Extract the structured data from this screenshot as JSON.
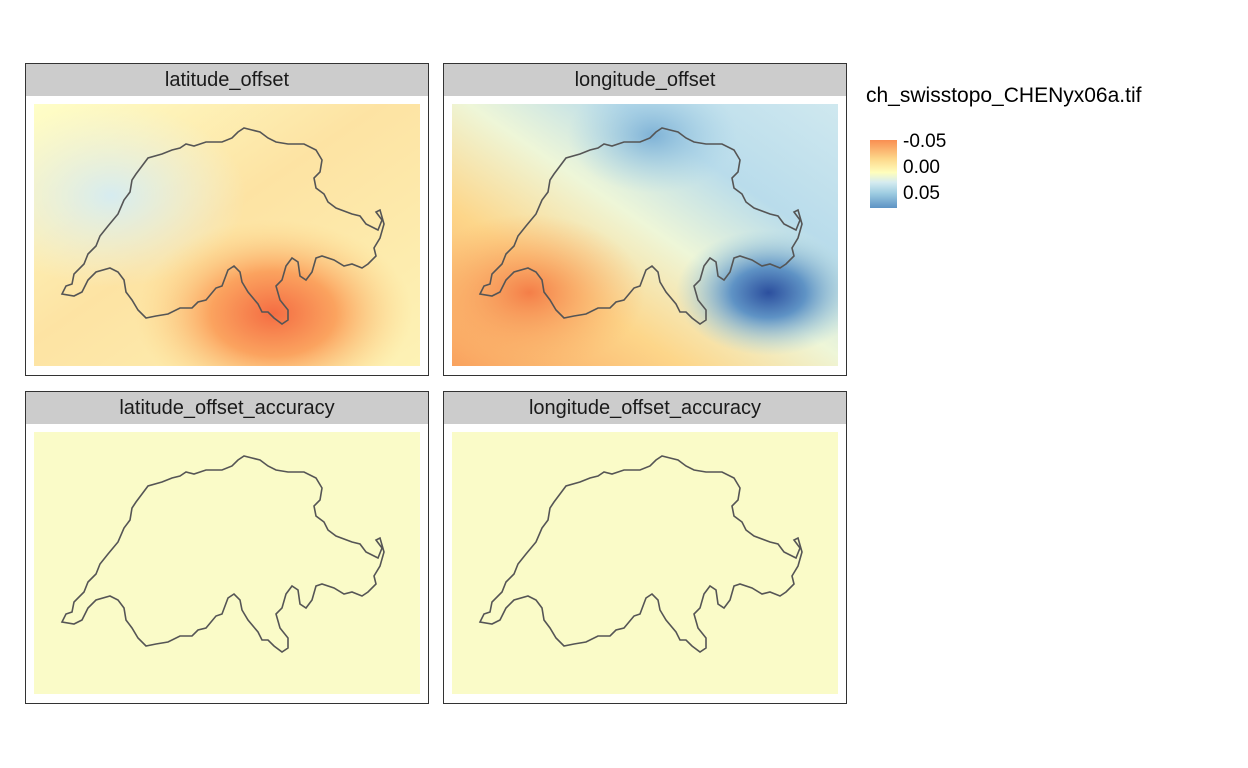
{
  "panels": [
    {
      "title": "latitude_offset"
    },
    {
      "title": "longitude_offset"
    },
    {
      "title": "latitude_offset_accuracy"
    },
    {
      "title": "longitude_offset_accuracy"
    }
  ],
  "legend": {
    "title": "ch_swisstopo_CHENyx06a.tif",
    "labels": [
      "-0.05",
      "0.00",
      "0.05"
    ]
  },
  "colors": {
    "strip_background": "#cccccc",
    "negative": "#f98e52",
    "zero": "#fefebd",
    "positive": "#5d93c4",
    "accuracy_fill": "#fafbc8",
    "outline": "#555555"
  }
}
